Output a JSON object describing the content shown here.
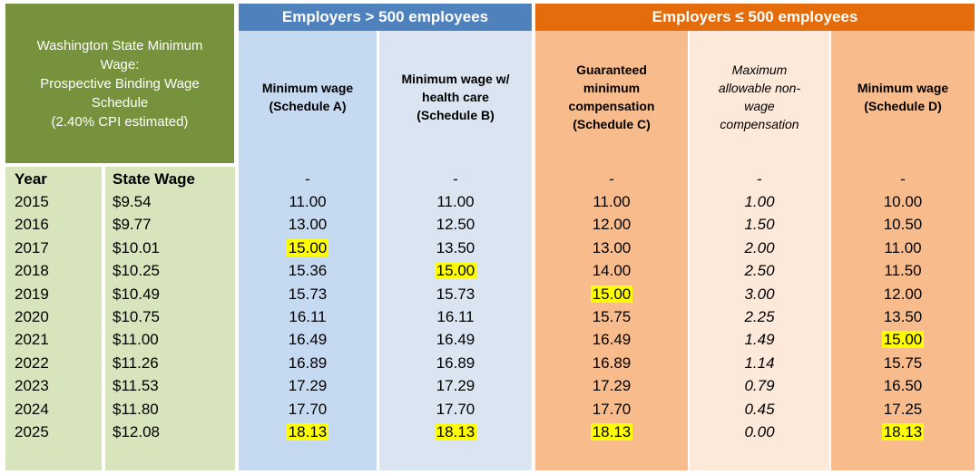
{
  "title_lines": [
    "Washington State Minimum",
    "Wage:",
    "Prospective Binding Wage",
    "Schedule",
    "(2.40% CPI estimated)"
  ],
  "groups": {
    "large": "Employers > 500 employees",
    "small": "Employers ≤ 500 employees"
  },
  "columns": {
    "a": [
      "Minimum wage",
      "(Schedule A)"
    ],
    "b": [
      "Minimum wage w/",
      "health care",
      "(Schedule B)"
    ],
    "c": [
      "Guaranteed",
      "minimum",
      "compensation",
      "(Schedule C)"
    ],
    "d": [
      "Maximum",
      "allowable non-",
      "wage",
      "compensation"
    ],
    "e": [
      "Minimum wage",
      "(Schedule D)"
    ]
  },
  "header": {
    "year": "Year",
    "state_wage": "State Wage"
  },
  "dash": "-",
  "highlight_color": "#ffff00",
  "rows": [
    {
      "year": "2015",
      "state": "$9.54",
      "a": "11.00",
      "b": "11.00",
      "c": "11.00",
      "d": "1.00",
      "e": "10.00",
      "hl": []
    },
    {
      "year": "2016",
      "state": "$9.77",
      "a": "13.00",
      "b": "12.50",
      "c": "12.00",
      "d": "1.50",
      "e": "10.50",
      "hl": []
    },
    {
      "year": "2017",
      "state": "$10.01",
      "a": "15.00",
      "b": "13.50",
      "c": "13.00",
      "d": "2.00",
      "e": "11.00",
      "hl": [
        "a"
      ]
    },
    {
      "year": "2018",
      "state": "$10.25",
      "a": "15.36",
      "b": "15.00",
      "c": "14.00",
      "d": "2.50",
      "e": "11.50",
      "hl": [
        "b"
      ]
    },
    {
      "year": "2019",
      "state": "$10.49",
      "a": "15.73",
      "b": "15.73",
      "c": "15.00",
      "d": "3.00",
      "e": "12.00",
      "hl": [
        "c"
      ]
    },
    {
      "year": "2020",
      "state": "$10.75",
      "a": "16.11",
      "b": "16.11",
      "c": "15.75",
      "d": "2.25",
      "e": "13.50",
      "hl": []
    },
    {
      "year": "2021",
      "state": "$11.00",
      "a": "16.49",
      "b": "16.49",
      "c": "16.49",
      "d": "1.49",
      "e": "15.00",
      "hl": [
        "e"
      ]
    },
    {
      "year": "2022",
      "state": "$11.26",
      "a": "16.89",
      "b": "16.89",
      "c": "16.89",
      "d": "1.14",
      "e": "15.75",
      "hl": []
    },
    {
      "year": "2023",
      "state": "$11.53",
      "a": "17.29",
      "b": "17.29",
      "c": "17.29",
      "d": "0.79",
      "e": "16.50",
      "hl": []
    },
    {
      "year": "2024",
      "state": "$11.80",
      "a": "17.70",
      "b": "17.70",
      "c": "17.70",
      "d": "0.45",
      "e": "17.25",
      "hl": []
    },
    {
      "year": "2025",
      "state": "$12.08",
      "a": "18.13",
      "b": "18.13",
      "c": "18.13",
      "d": "0.00",
      "e": "18.13",
      "hl": [
        "a",
        "b",
        "c",
        "e"
      ]
    }
  ]
}
